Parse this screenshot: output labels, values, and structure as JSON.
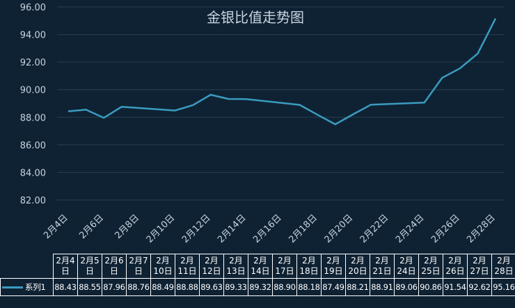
{
  "chart_data": {
    "type": "line",
    "title": "金银比值走势图",
    "ylim": [
      82,
      96
    ],
    "ytick_labels": [
      "82.00",
      "84.00",
      "86.00",
      "88.00",
      "90.00",
      "92.00",
      "94.00",
      "96.00"
    ],
    "xtick_labels": [
      "2月4日",
      "2月6日",
      "2月8日",
      "2月10日",
      "2月12日",
      "2月14日",
      "2月16日",
      "2月18日",
      "2月20日",
      "2月22日",
      "2月24日",
      "2月26日",
      "2月28日"
    ],
    "x": [
      "2月4日",
      "2月5日",
      "2月6日",
      "2月7日",
      "2月10日",
      "2月11日",
      "2月12日",
      "2月13日",
      "2月14日",
      "2月17日",
      "2月18日",
      "2月19日",
      "2月20日",
      "2月21日",
      "2月24日",
      "2月25日",
      "2月26日",
      "2月27日",
      "2月28日"
    ],
    "table_headers": [
      "2月4\n日",
      "2月5\n日",
      "2月6\n日",
      "2月7\n日",
      "2月\n10日",
      "2月\n11日",
      "2月\n12日",
      "2月\n13日",
      "2月\n14日",
      "2月\n17日",
      "2月\n18日",
      "2月\n19日",
      "2月\n20日",
      "2月\n21日",
      "2月\n24日",
      "2月\n25日",
      "2月\n26日",
      "2月\n27日",
      "2月\n28日"
    ],
    "series": [
      {
        "name": "系列1",
        "color": "#3a9cc0",
        "values": [
          88.43,
          88.55,
          87.96,
          88.76,
          88.49,
          88.88,
          89.63,
          89.33,
          89.32,
          88.9,
          88.18,
          87.49,
          88.21,
          88.91,
          89.06,
          90.86,
          91.54,
          92.62,
          95.16
        ],
        "value_labels": [
          "88.43",
          "88.55",
          "87.96",
          "88.76",
          "88.49",
          "88.88",
          "89.63",
          "89.33",
          "89.32",
          "88.90",
          "88.18",
          "87.49",
          "88.21",
          "88.91",
          "89.06",
          "90.86",
          "91.54",
          "92.62",
          "95.16"
        ]
      }
    ],
    "grid": true,
    "legend": "data-table",
    "colors": {
      "background": "#0f2233",
      "grid": "#2a3e50",
      "text": "#c8d4e0",
      "line": "#3a9cc0"
    }
  }
}
